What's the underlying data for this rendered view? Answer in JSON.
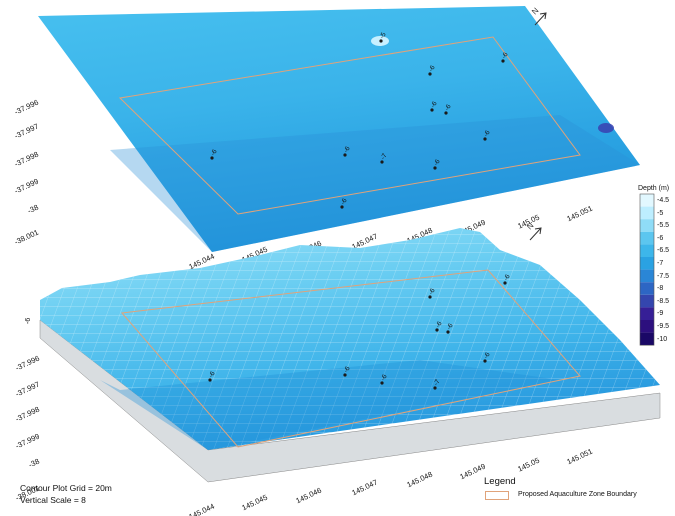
{
  "top_map": {
    "lat_ticks": [
      "-37.996",
      "-37.997",
      "-37.998",
      "-37.999",
      "-38",
      "-38.001"
    ],
    "lon_ticks": [
      "145.044",
      "145.045",
      "145.046",
      "145.047",
      "145.048",
      "145.049",
      "145.05",
      "145.051"
    ],
    "north_label": "N",
    "points": [
      {
        "label": "-5"
      },
      {
        "label": "-6"
      },
      {
        "label": "-6"
      },
      {
        "label": "-6"
      },
      {
        "label": "-6"
      },
      {
        "label": "-6"
      },
      {
        "label": "-6"
      },
      {
        "label": "-6"
      },
      {
        "label": "-7"
      },
      {
        "label": "-6"
      },
      {
        "label": "-6"
      }
    ]
  },
  "bottom_map": {
    "lat_ticks": [
      "-37.996",
      "-37.997",
      "-37.998",
      "-37.999",
      "-38",
      "-38.001"
    ],
    "lon_ticks": [
      "145.044",
      "145.045",
      "145.046",
      "145.047",
      "145.048",
      "145.049",
      "145.05",
      "145.051"
    ],
    "north_label": "N",
    "z_tick": "-6",
    "points": [
      {
        "label": "-6"
      },
      {
        "label": "-6"
      },
      {
        "label": "-6"
      },
      {
        "label": "-6"
      },
      {
        "label": "-6"
      },
      {
        "label": "-6"
      },
      {
        "label": "-6"
      },
      {
        "label": "-6"
      },
      {
        "label": "-7"
      }
    ]
  },
  "depth_legend": {
    "title": "Depth (m)",
    "levels": [
      "-4.5",
      "-5",
      "-5.5",
      "-6",
      "-6.5",
      "-7",
      "-7.5",
      "-8",
      "-8.5",
      "-9",
      "-9.5",
      "-10"
    ],
    "colors": [
      "#e2f8ff",
      "#bdeeff",
      "#8fdcf7",
      "#5cc6ef",
      "#3db6ea",
      "#2aa2e2",
      "#2a86d6",
      "#2d66c4",
      "#3446ae",
      "#361f96",
      "#2c0f7e",
      "#1a0866"
    ]
  },
  "notes": {
    "grid": "Contour Plot Grid = 20m",
    "scale": "Vertical Scale = 8"
  },
  "legend": {
    "title": "Legend",
    "item": "Proposed Aquaculture Zone Boundary",
    "boundary_color": "#e0a37a"
  }
}
